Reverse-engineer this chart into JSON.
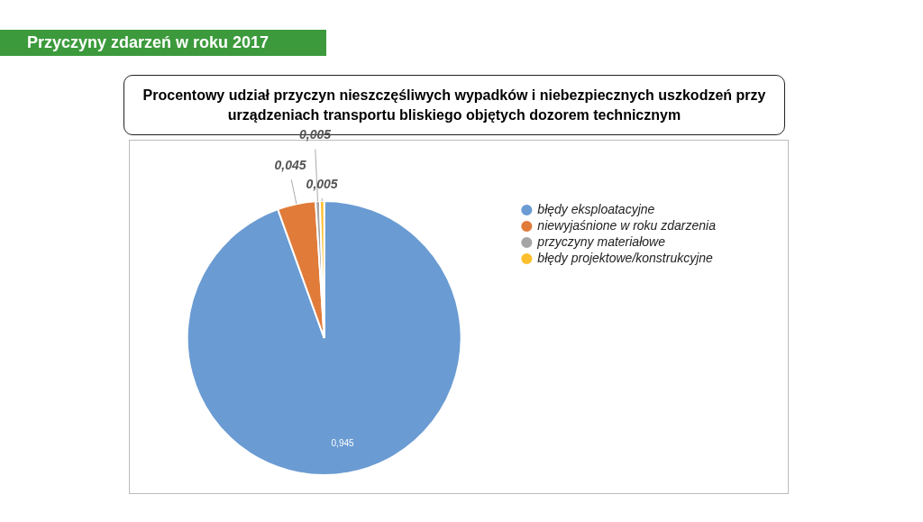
{
  "chart_data": {
    "type": "pie",
    "title": "Przyczyny zdarzeń w roku 2017",
    "subtitle": "Procentowy udział przyczyn nieszczęśliwych wypadków i niebezpiecznych uszkodzeń przy urządzeniach transportu bliskiego objętych dozorem technicznym",
    "categories": [
      "błędy eksploatacyjne",
      "niewyjaśnione w roku zdarzenia",
      "przyczyny materiałowe",
      "błędy projektowe/konstrukcyjne"
    ],
    "values": [
      0.945,
      0.045,
      0.005,
      0.005
    ],
    "colors": [
      "#6a9bd3",
      "#e07b39",
      "#a5a5a5",
      "#fdbf2d"
    ],
    "value_labels": [
      "0,945",
      "0,045",
      "0,005",
      "0,005"
    ],
    "legend": "right"
  }
}
